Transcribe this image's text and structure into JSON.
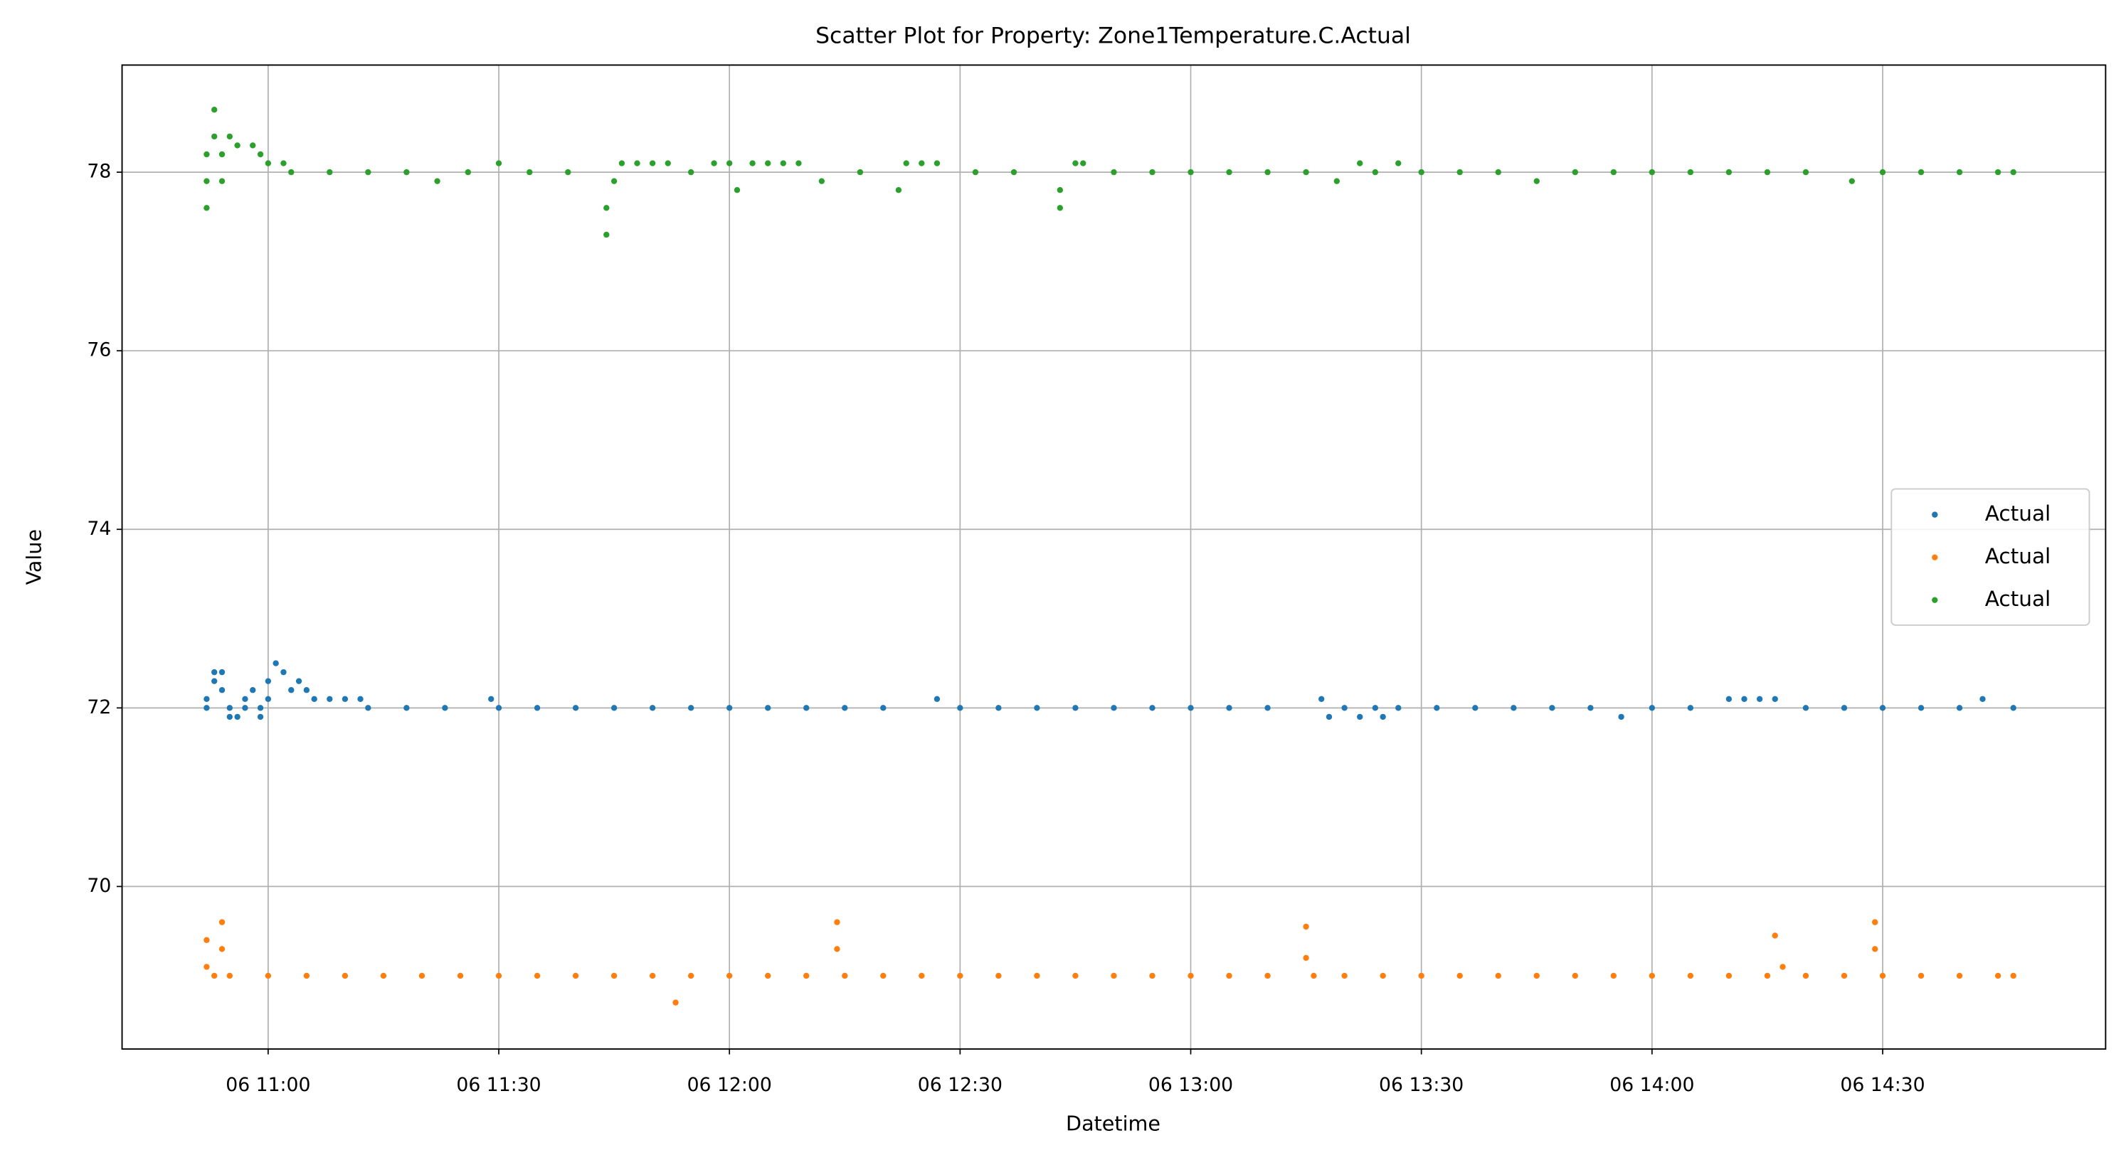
{
  "chart_data": {
    "type": "scatter",
    "title": "Scatter Plot for Property: Zone1Temperature.C.Actual",
    "x_label": "Datetime",
    "y_label": "Value",
    "xlim": [
      "06 10:41",
      "06 14:59"
    ],
    "xticks": [
      "06 11:00",
      "06 11:30",
      "06 12:00",
      "06 12:30",
      "06 13:00",
      "06 13:30",
      "06 14:00",
      "06 14:30"
    ],
    "ylim": [
      68.18,
      79.2
    ],
    "yticks": [
      70,
      72,
      74,
      76,
      78
    ],
    "grid": true,
    "legend": "center right",
    "series": [
      {
        "name": "Actual",
        "color": "#1f77b4",
        "x": [
          "06 10:52",
          "06 10:52",
          "06 10:53",
          "06 10:53",
          "06 10:54",
          "06 10:54",
          "06 10:55",
          "06 10:55",
          "06 10:56",
          "06 10:57",
          "06 10:57",
          "06 10:58",
          "06 10:59",
          "06 10:59",
          "06 11:00",
          "06 11:00",
          "06 11:01",
          "06 11:02",
          "06 11:03",
          "06 11:04",
          "06 11:05",
          "06 11:06",
          "06 11:08",
          "06 11:10",
          "06 11:12",
          "06 11:13",
          "06 11:18",
          "06 11:23",
          "06 11:29",
          "06 11:30",
          "06 11:35",
          "06 11:40",
          "06 11:45",
          "06 11:50",
          "06 11:55",
          "06 12:00",
          "06 12:05",
          "06 12:10",
          "06 12:15",
          "06 12:20",
          "06 12:27",
          "06 12:30",
          "06 12:35",
          "06 12:40",
          "06 12:45",
          "06 12:50",
          "06 12:55",
          "06 13:00",
          "06 13:05",
          "06 13:10",
          "06 13:17",
          "06 13:18",
          "06 13:20",
          "06 13:22",
          "06 13:24",
          "06 13:25",
          "06 13:27",
          "06 13:32",
          "06 13:37",
          "06 13:42",
          "06 13:47",
          "06 13:52",
          "06 13:56",
          "06 14:00",
          "06 14:05",
          "06 14:10",
          "06 14:12",
          "06 14:14",
          "06 14:16",
          "06 14:20",
          "06 14:25",
          "06 14:30",
          "06 14:35",
          "06 14:40",
          "06 14:43",
          "06 14:47"
        ],
        "values": [
          72,
          72.1,
          72.3,
          72.4,
          72.4,
          72.2,
          72,
          71.9,
          71.9,
          72,
          72.1,
          72.2,
          72,
          71.9,
          72.1,
          72.3,
          72.5,
          72.4,
          72.2,
          72.3,
          72.2,
          72.1,
          72.1,
          72.1,
          72.1,
          72,
          72,
          72,
          72.1,
          72,
          72,
          72,
          72,
          72,
          72,
          72,
          72,
          72,
          72,
          72,
          72.1,
          72,
          72,
          72,
          72,
          72,
          72,
          72,
          72,
          72,
          72.1,
          71.9,
          72,
          71.9,
          72,
          71.9,
          72,
          72,
          72,
          72,
          72,
          72,
          71.9,
          72,
          72,
          72.1,
          72.1,
          72.1,
          72.1,
          72,
          72,
          72,
          72,
          72,
          72.1,
          72
        ]
      },
      {
        "name": "Actual",
        "color": "#ff7f0e",
        "x": [
          "06 10:52",
          "06 10:52",
          "06 10:53",
          "06 10:54",
          "06 10:54",
          "06 10:55",
          "06 11:00",
          "06 11:05",
          "06 11:10",
          "06 11:15",
          "06 11:20",
          "06 11:25",
          "06 11:30",
          "06 11:35",
          "06 11:40",
          "06 11:45",
          "06 11:50",
          "06 11:53",
          "06 11:55",
          "06 12:00",
          "06 12:05",
          "06 12:10",
          "06 12:14",
          "06 12:14",
          "06 12:15",
          "06 12:20",
          "06 12:25",
          "06 12:30",
          "06 12:35",
          "06 12:40",
          "06 12:45",
          "06 12:50",
          "06 12:55",
          "06 13:00",
          "06 13:05",
          "06 13:10",
          "06 13:15",
          "06 13:15",
          "06 13:16",
          "06 13:20",
          "06 13:25",
          "06 13:30",
          "06 13:35",
          "06 13:40",
          "06 13:45",
          "06 13:50",
          "06 13:55",
          "06 14:00",
          "06 14:05",
          "06 14:10",
          "06 14:15",
          "06 14:16",
          "06 14:17",
          "06 14:20",
          "06 14:25",
          "06 14:29",
          "06 14:29",
          "06 14:30",
          "06 14:35",
          "06 14:40",
          "06 14:45",
          "06 14:47"
        ],
        "values": [
          69.4,
          69.1,
          69,
          69.6,
          69.3,
          69,
          69,
          69,
          69,
          69,
          69,
          69,
          69,
          69,
          69,
          69,
          69,
          68.7,
          69,
          69,
          69,
          69,
          69.6,
          69.3,
          69,
          69,
          69,
          69,
          69,
          69,
          69,
          69,
          69,
          69,
          69,
          69,
          69.55,
          69.2,
          69,
          69,
          69,
          69,
          69,
          69,
          69,
          69,
          69,
          69,
          69,
          69,
          69,
          69.45,
          69.1,
          69,
          69,
          69.6,
          69.3,
          69,
          69,
          69,
          69,
          69
        ]
      },
      {
        "name": "Actual",
        "color": "#2ca02c",
        "x": [
          "06 10:52",
          "06 10:52",
          "06 10:52",
          "06 10:53",
          "06 10:53",
          "06 10:54",
          "06 10:54",
          "06 10:55",
          "06 10:56",
          "06 10:58",
          "06 10:59",
          "06 11:00",
          "06 11:02",
          "06 11:03",
          "06 11:08",
          "06 11:13",
          "06 11:18",
          "06 11:22",
          "06 11:26",
          "06 11:30",
          "06 11:34",
          "06 11:39",
          "06 11:44",
          "06 11:44",
          "06 11:45",
          "06 11:46",
          "06 11:48",
          "06 11:50",
          "06 11:52",
          "06 11:55",
          "06 11:58",
          "06 12:00",
          "06 12:01",
          "06 12:03",
          "06 12:05",
          "06 12:07",
          "06 12:09",
          "06 12:12",
          "06 12:17",
          "06 12:22",
          "06 12:23",
          "06 12:25",
          "06 12:27",
          "06 12:32",
          "06 12:37",
          "06 12:43",
          "06 12:43",
          "06 12:45",
          "06 12:46",
          "06 12:50",
          "06 12:55",
          "06 13:00",
          "06 13:05",
          "06 13:10",
          "06 13:15",
          "06 13:19",
          "06 13:22",
          "06 13:24",
          "06 13:27",
          "06 13:30",
          "06 13:35",
          "06 13:40",
          "06 13:45",
          "06 13:50",
          "06 13:55",
          "06 14:00",
          "06 14:05",
          "06 14:10",
          "06 14:15",
          "06 14:20",
          "06 14:26",
          "06 14:30",
          "06 14:35",
          "06 14:40",
          "06 14:45",
          "06 14:47"
        ],
        "values": [
          77.6,
          77.9,
          78.2,
          78.7,
          78.4,
          77.9,
          78.2,
          78.4,
          78.3,
          78.3,
          78.2,
          78.1,
          78.1,
          78,
          78,
          78,
          78,
          77.9,
          78,
          78.1,
          78,
          78,
          77.3,
          77.6,
          77.9,
          78.1,
          78.1,
          78.1,
          78.1,
          78,
          78.1,
          78.1,
          77.8,
          78.1,
          78.1,
          78.1,
          78.1,
          77.9,
          78,
          77.8,
          78.1,
          78.1,
          78.1,
          78,
          78,
          77.6,
          77.8,
          78.1,
          78.1,
          78,
          78,
          78,
          78,
          78,
          78,
          77.9,
          78.1,
          78,
          78.1,
          78,
          78,
          78,
          77.9,
          78,
          78,
          78,
          78,
          78,
          78,
          78,
          77.9,
          78,
          78,
          78,
          78,
          78
        ]
      }
    ]
  }
}
